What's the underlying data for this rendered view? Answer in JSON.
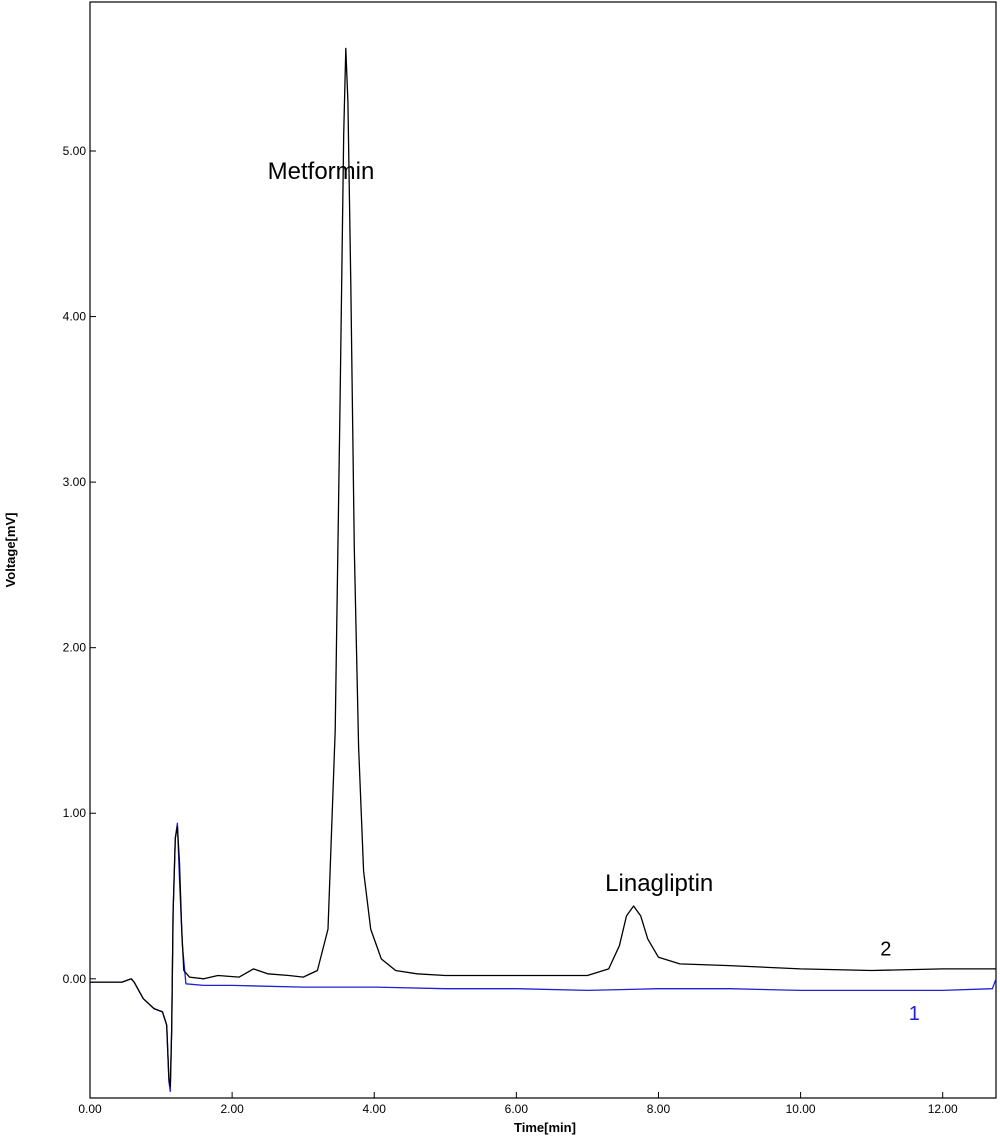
{
  "chart_data": {
    "type": "line",
    "title": "",
    "xlabel": "Time[min]",
    "ylabel": "Voltage[mV]",
    "xlim": [
      0,
      12.75
    ],
    "ylim": [
      -0.72,
      5.9
    ],
    "x_ticks": [
      0,
      2,
      4,
      6,
      8,
      10,
      12
    ],
    "x_tick_labels": [
      "0.00",
      "2.00",
      "4.00",
      "6.00",
      "8.00",
      "10.00",
      "12.00"
    ],
    "y_ticks": [
      0,
      1,
      2,
      3,
      4,
      5
    ],
    "y_tick_labels": [
      "0.00",
      "1.00",
      "2.00",
      "3.00",
      "4.00",
      "5.00"
    ],
    "grid": false,
    "series": [
      {
        "name": "2",
        "color": "#000000",
        "points": [
          [
            0.0,
            -0.02
          ],
          [
            0.45,
            -0.02
          ],
          [
            0.58,
            0.0
          ],
          [
            0.62,
            -0.02
          ],
          [
            0.75,
            -0.12
          ],
          [
            0.9,
            -0.18
          ],
          [
            1.02,
            -0.2
          ],
          [
            1.08,
            -0.28
          ],
          [
            1.11,
            -0.6
          ],
          [
            1.13,
            -0.65
          ],
          [
            1.15,
            -0.3
          ],
          [
            1.17,
            0.4
          ],
          [
            1.2,
            0.85
          ],
          [
            1.23,
            0.92
          ],
          [
            1.26,
            0.7
          ],
          [
            1.29,
            0.3
          ],
          [
            1.32,
            0.05
          ],
          [
            1.4,
            0.01
          ],
          [
            1.6,
            0.0
          ],
          [
            1.8,
            0.02
          ],
          [
            2.1,
            0.01
          ],
          [
            2.3,
            0.06
          ],
          [
            2.5,
            0.03
          ],
          [
            2.8,
            0.02
          ],
          [
            3.0,
            0.01
          ],
          [
            3.2,
            0.05
          ],
          [
            3.35,
            0.3
          ],
          [
            3.45,
            1.5
          ],
          [
            3.52,
            3.5
          ],
          [
            3.57,
            5.1
          ],
          [
            3.6,
            5.62
          ],
          [
            3.63,
            5.3
          ],
          [
            3.67,
            4.2
          ],
          [
            3.72,
            2.6
          ],
          [
            3.78,
            1.4
          ],
          [
            3.85,
            0.65
          ],
          [
            3.95,
            0.3
          ],
          [
            4.1,
            0.12
          ],
          [
            4.3,
            0.05
          ],
          [
            4.6,
            0.03
          ],
          [
            5.0,
            0.02
          ],
          [
            6.0,
            0.02
          ],
          [
            7.0,
            0.02
          ],
          [
            7.3,
            0.06
          ],
          [
            7.45,
            0.2
          ],
          [
            7.55,
            0.38
          ],
          [
            7.65,
            0.44
          ],
          [
            7.75,
            0.38
          ],
          [
            7.85,
            0.24
          ],
          [
            8.0,
            0.13
          ],
          [
            8.3,
            0.09
          ],
          [
            9.0,
            0.08
          ],
          [
            10.0,
            0.06
          ],
          [
            11.0,
            0.05
          ],
          [
            12.0,
            0.06
          ],
          [
            12.75,
            0.06
          ]
        ]
      },
      {
        "name": "1",
        "color": "#1f1fd6",
        "points": [
          [
            0.0,
            -0.02
          ],
          [
            0.45,
            -0.02
          ],
          [
            0.58,
            0.0
          ],
          [
            0.62,
            -0.02
          ],
          [
            0.75,
            -0.12
          ],
          [
            0.9,
            -0.18
          ],
          [
            1.02,
            -0.2
          ],
          [
            1.08,
            -0.28
          ],
          [
            1.11,
            -0.62
          ],
          [
            1.13,
            -0.68
          ],
          [
            1.15,
            -0.3
          ],
          [
            1.17,
            0.4
          ],
          [
            1.2,
            0.85
          ],
          [
            1.23,
            0.94
          ],
          [
            1.26,
            0.6
          ],
          [
            1.3,
            0.2
          ],
          [
            1.35,
            -0.03
          ],
          [
            1.6,
            -0.04
          ],
          [
            2.0,
            -0.04
          ],
          [
            3.0,
            -0.05
          ],
          [
            4.0,
            -0.05
          ],
          [
            5.0,
            -0.06
          ],
          [
            6.0,
            -0.06
          ],
          [
            7.0,
            -0.07
          ],
          [
            8.0,
            -0.06
          ],
          [
            9.0,
            -0.06
          ],
          [
            10.0,
            -0.07
          ],
          [
            11.0,
            -0.07
          ],
          [
            12.0,
            -0.07
          ],
          [
            12.7,
            -0.06
          ],
          [
            12.75,
            0.0
          ]
        ]
      }
    ],
    "annotations": [
      {
        "text": "Metformin",
        "x": 2.5,
        "y": 4.83
      },
      {
        "text": "Linagliptin",
        "x": 7.25,
        "y": 0.53
      }
    ],
    "trace_labels": [
      {
        "text": "2",
        "x": 11.2,
        "y": 0.14,
        "color": "#000000"
      },
      {
        "text": "1",
        "x": 11.6,
        "y": -0.25,
        "color": "#1f1fd6"
      }
    ]
  }
}
